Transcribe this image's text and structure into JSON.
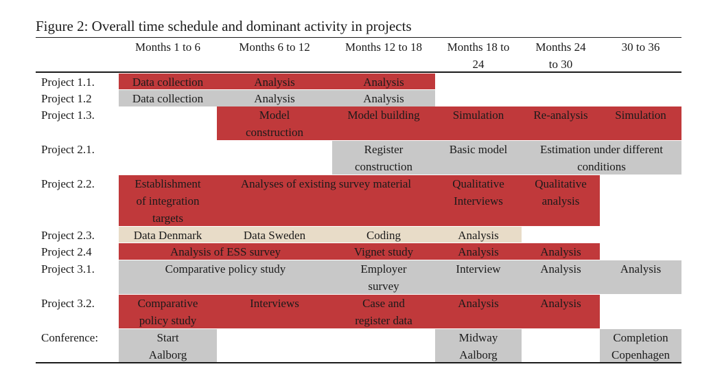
{
  "title": "Figure 2: Overall time schedule and dominant activity in projects",
  "headers": [
    "Months 1 to 6",
    "Months 6 to 12",
    "Months 12 to 18",
    "Months 18 to 24",
    "Months 24 to 30",
    "30 to 36"
  ],
  "colors": {
    "red": "#c0393b",
    "gray": "#c8c8c8",
    "beige": "#e8dcc8"
  },
  "rows": [
    {
      "label": "Project 1.1.",
      "cells": [
        {
          "text": "Data collection",
          "color": "red"
        },
        {
          "text": "Analysis",
          "color": "red"
        },
        {
          "text": "Analysis",
          "color": "red"
        }
      ]
    },
    {
      "label": "Project 1.2",
      "cells": [
        {
          "text": "Data collection",
          "color": "gray"
        },
        {
          "text": "Analysis",
          "color": "gray"
        },
        {
          "text": "Analysis",
          "color": "gray"
        }
      ]
    },
    {
      "label": "Project 1.3.",
      "cells": [
        {
          "text": "Model construction",
          "color": "red"
        },
        {
          "text": "Model building",
          "color": "red"
        },
        {
          "text": "Simulation",
          "color": "red"
        },
        {
          "text": "Re-analysis",
          "color": "red"
        },
        {
          "text": "Simulation",
          "color": "red"
        }
      ]
    },
    {
      "label": "Project 2.1.",
      "cells": [
        {
          "text": "Register construction",
          "color": "gray"
        },
        {
          "text": "Basic model",
          "color": "gray"
        },
        {
          "text": "Estimation under different conditions",
          "color": "gray"
        }
      ]
    },
    {
      "label": "Project 2.2.",
      "cells": [
        {
          "text": "Establishment of integration targets",
          "color": "red"
        },
        {
          "text": "Analyses of existing survey material",
          "color": "red"
        },
        {
          "text": "Qualitative Interviews",
          "color": "red"
        },
        {
          "text": "Qualitative analysis",
          "color": "red"
        }
      ]
    },
    {
      "label": "Project 2.3.",
      "cells": [
        {
          "text": "Data Denmark",
          "color": "beige"
        },
        {
          "text": "Data Sweden",
          "color": "beige"
        },
        {
          "text": "Coding",
          "color": "beige"
        },
        {
          "text": "Analysis",
          "color": "beige"
        }
      ]
    },
    {
      "label": "Project 2.4",
      "cells": [
        {
          "text": "Analysis of ESS survey",
          "color": "red"
        },
        {
          "text": "Vignet study",
          "color": "red"
        },
        {
          "text": "Analysis",
          "color": "red"
        },
        {
          "text": "Analysis",
          "color": "red"
        }
      ]
    },
    {
      "label": "Project 3.1.",
      "cells": [
        {
          "text": "Comparative policy study",
          "color": "gray"
        },
        {
          "text": "Employer survey",
          "color": "gray"
        },
        {
          "text": "Interview",
          "color": "gray"
        },
        {
          "text": "Analysis",
          "color": "gray"
        },
        {
          "text": "Analysis",
          "color": "gray"
        }
      ]
    },
    {
      "label": "Project 3.2.",
      "cells": [
        {
          "text": "Comparative policy study",
          "color": "red"
        },
        {
          "text": "Interviews",
          "color": "red"
        },
        {
          "text": "Case and register data",
          "color": "red"
        },
        {
          "text": "Analysis",
          "color": "red"
        },
        {
          "text": "Analysis",
          "color": "red"
        }
      ]
    },
    {
      "label": "Conference:",
      "cells": [
        {
          "text": "Start Aalborg",
          "color": "gray"
        },
        {
          "text": "Midway Aalborg",
          "color": "gray"
        },
        {
          "text": "Completion Copenhagen",
          "color": "gray"
        }
      ]
    }
  ]
}
